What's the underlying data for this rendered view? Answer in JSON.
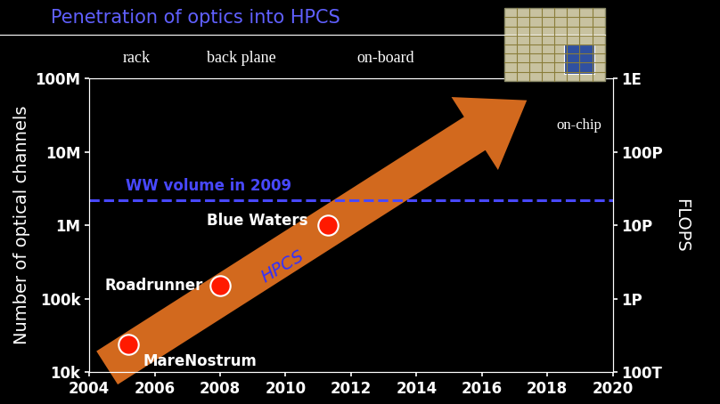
{
  "chart_data": {
    "type": "scatter",
    "title": "Penetration of optics into HPCS",
    "y_label": "Number of optical channels",
    "y2_label": "FLOPS",
    "x": [
      2005.2,
      2008.0,
      2011.3
    ],
    "values": [
      24000,
      150000,
      1000000
    ],
    "labels": [
      "MareNostrum",
      "Roadrunner",
      "Blue Waters"
    ],
    "color": "#ff1a00",
    "marker": "o",
    "log": "y",
    "xlim": [
      2004,
      2020
    ],
    "xticks": [
      2004,
      2006,
      2008,
      2010,
      2012,
      2014,
      2016,
      2018,
      2020
    ],
    "ylim": [
      10000,
      100000000
    ],
    "yticks": [
      {
        "value": 10000,
        "label": "10k"
      },
      {
        "value": 100000,
        "label": "100k"
      },
      {
        "value": 1000000,
        "label": "1M"
      },
      {
        "value": 10000000,
        "label": "10M"
      },
      {
        "value": 100000000,
        "label": "100M"
      }
    ],
    "y2lim": [
      100000000000000,
      1000000000000000000
    ],
    "y2ticks": [
      {
        "value": 100000000000000,
        "label": "100T"
      },
      {
        "value": 1000000000000000,
        "label": "1P"
      },
      {
        "value": 10000000000000000,
        "label": "10P"
      },
      {
        "value": 100000000000000000,
        "label": "100P"
      },
      {
        "value": 1000000000000000000,
        "label": "1E"
      }
    ],
    "reference_line": {
      "label": "WW volume in 2009",
      "value": 2200000,
      "line_style": "dashed",
      "color": "#4848ff"
    },
    "arrow_label": "HPCS",
    "stage_labels": [
      "rack",
      "back plane",
      "on-board",
      "on-chip"
    ],
    "grid": false
  }
}
